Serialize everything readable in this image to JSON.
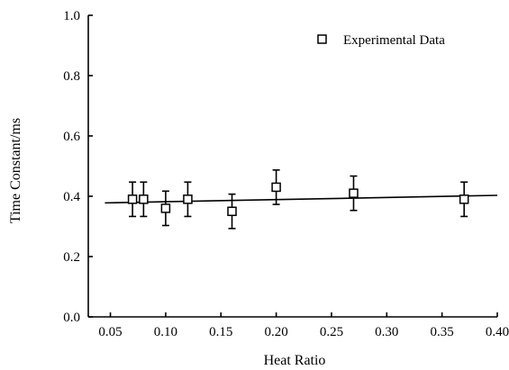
{
  "chart_data": {
    "type": "scatter",
    "title": "",
    "xlabel": "Heat Ratio",
    "ylabel": "Time Constant/ms",
    "xlim": [
      0.03,
      0.4
    ],
    "ylim": [
      0.0,
      1.0
    ],
    "x_ticks": [
      0.05,
      0.1,
      0.15,
      0.2,
      0.25,
      0.3,
      0.35,
      0.4
    ],
    "x_tick_labels": [
      "0.05",
      "0.10",
      "0.15",
      "0.20",
      "0.25",
      "0.30",
      "0.35",
      "0.40"
    ],
    "y_ticks": [
      0.0,
      0.2,
      0.4,
      0.6,
      0.8,
      1.0
    ],
    "y_tick_labels": [
      "0.0",
      "0.2",
      "0.4",
      "0.6",
      "0.8",
      "1.0"
    ],
    "grid": false,
    "legend": {
      "position": "top-right",
      "entries": [
        "Experimental Data"
      ]
    },
    "series": [
      {
        "name": "Experimental Data",
        "marker": "open-square",
        "points": [
          {
            "x": 0.07,
            "y": 0.39,
            "err": 0.057
          },
          {
            "x": 0.08,
            "y": 0.39,
            "err": 0.057
          },
          {
            "x": 0.1,
            "y": 0.36,
            "err": 0.057
          },
          {
            "x": 0.12,
            "y": 0.39,
            "err": 0.057
          },
          {
            "x": 0.16,
            "y": 0.35,
            "err": 0.057
          },
          {
            "x": 0.2,
            "y": 0.43,
            "err": 0.057
          },
          {
            "x": 0.27,
            "y": 0.41,
            "err": 0.057
          },
          {
            "x": 0.37,
            "y": 0.39,
            "err": 0.057
          }
        ]
      }
    ],
    "fit_line": {
      "x": [
        0.045,
        0.4
      ],
      "y": [
        0.378,
        0.403
      ]
    }
  }
}
